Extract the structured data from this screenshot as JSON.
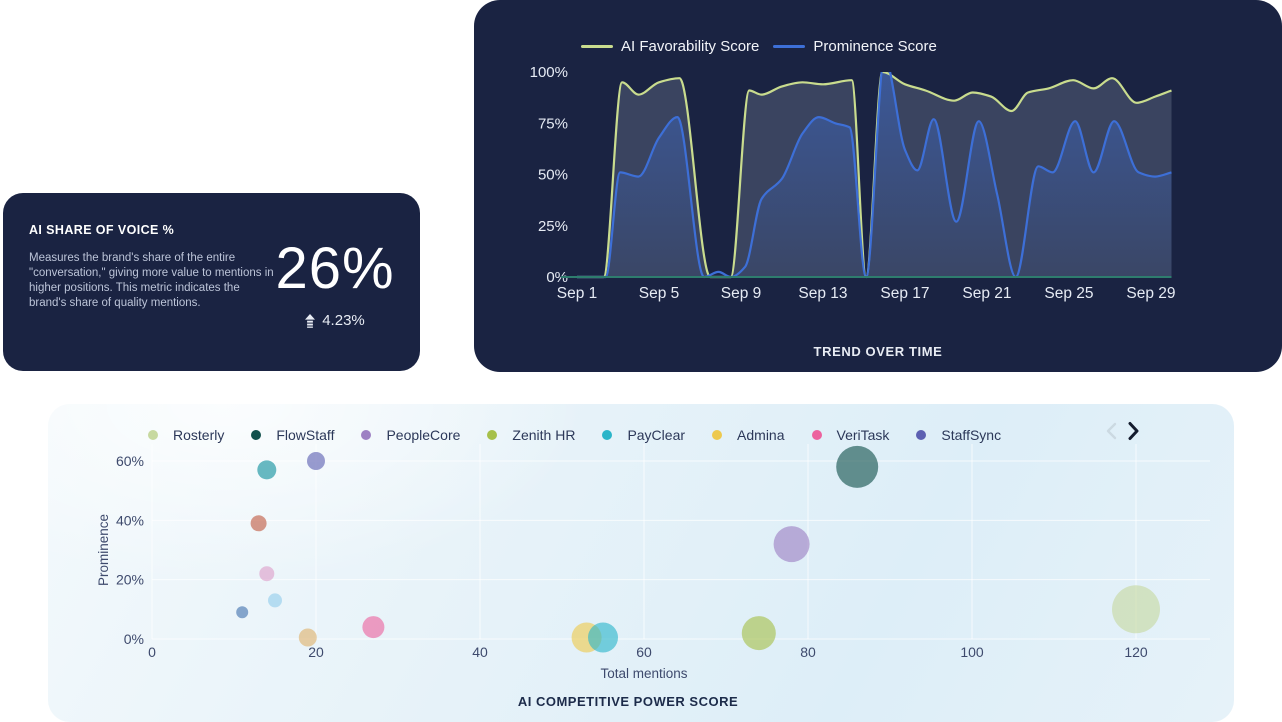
{
  "share_card": {
    "title": "AI SHARE OF VOICE %",
    "description": "Measures the brand's share of the entire \"conversation,\" giving more value to mentions in higher positions. This metric indicates the brand's share of quality mentions.",
    "value": "26%",
    "delta": "4.23%",
    "delta_direction": "up",
    "card_color": "#1a2342"
  },
  "chart_data": [
    {
      "type": "area",
      "title": "TREND OVER TIME",
      "legend_position": "top",
      "grid": false,
      "x_axis": {
        "domain_days": [
          1,
          30
        ],
        "tick_days": [
          1,
          5,
          9,
          13,
          17,
          21,
          25,
          29
        ],
        "tick_labels": [
          "Sep 1",
          "Sep 5",
          "Sep 9",
          "Sep 13",
          "Sep 17",
          "Sep 21",
          "Sep 25",
          "Sep 29"
        ]
      },
      "y_axis": {
        "range": [
          0,
          100
        ],
        "tick_values": [
          0,
          25,
          50,
          75,
          100
        ],
        "tick_labels": [
          "0%",
          "25%",
          "50%",
          "75%",
          "100%"
        ]
      },
      "baseline_color": "#2e7d6e",
      "series": [
        {
          "name": "AI Favorability Score",
          "color": "#c9dc8e",
          "area_fill": "rgba(150,165,186,0.26)",
          "x": [
            1,
            2.3,
            3.2,
            4,
            5,
            6,
            7.5,
            8.5,
            9.4,
            10,
            11,
            12,
            13,
            14.4,
            15.1,
            15.9,
            17,
            18,
            19.4,
            20.3,
            21.2,
            22.2,
            23,
            24,
            25.2,
            26.2,
            27.1,
            28.3,
            29.2,
            30
          ],
          "y": [
            0,
            0,
            95,
            89,
            95,
            97,
            0,
            0,
            91,
            89,
            93,
            95,
            94,
            96,
            0,
            100,
            94,
            91,
            86,
            90,
            88,
            81,
            90,
            92,
            96,
            92,
            97,
            85,
            88,
            91
          ]
        },
        {
          "name": "Prominence Score",
          "color": "#3d6fd7",
          "area_fill": "gradient-blue",
          "x": [
            1,
            2.4,
            3.1,
            4,
            5,
            5.9,
            7.2,
            7.9,
            8.5,
            9.2,
            10,
            11,
            12,
            12.8,
            13.6,
            14.3,
            15.1,
            16,
            17,
            17.6,
            18.4,
            19.5,
            20.6,
            21.5,
            22.4,
            23.5,
            24.2,
            25.3,
            26.2,
            27.2,
            28.4,
            29.2,
            30
          ],
          "y": [
            0,
            0,
            51,
            49,
            68,
            78,
            0,
            2.5,
            0,
            5,
            38,
            48,
            70,
            78,
            75,
            73,
            0,
            107,
            62,
            52,
            77,
            27,
            76,
            40,
            0,
            54,
            51,
            76,
            51,
            76,
            51,
            49,
            51
          ]
        }
      ]
    },
    {
      "type": "scatter",
      "title": "AI COMPETITIVE POWER SCORE",
      "xlabel": "Total mentions",
      "ylabel": "Prominence",
      "x_axis": {
        "range": [
          0,
          129
        ],
        "tick_values": [
          0,
          20,
          40,
          60,
          80,
          100,
          120
        ],
        "tick_labels": [
          "0",
          "20",
          "40",
          "60",
          "80",
          "100",
          "120"
        ]
      },
      "y_axis": {
        "range": [
          0,
          60
        ],
        "tick_values": [
          0,
          20,
          40,
          60
        ],
        "tick_labels": [
          "0%",
          "20%",
          "40%",
          "60%"
        ]
      },
      "grid": true,
      "legend": [
        {
          "name": "Rosterly",
          "color": "#c7d9a0"
        },
        {
          "name": "FlowStaff",
          "color": "#11504c"
        },
        {
          "name": "PeopleCore",
          "color": "#9d80c3"
        },
        {
          "name": "Zenith HR",
          "color": "#a6c04a"
        },
        {
          "name": "PayClear",
          "color": "#2bb5c9"
        },
        {
          "name": "Admina",
          "color": "#edc94e"
        },
        {
          "name": "VeriTask",
          "color": "#ec629e"
        },
        {
          "name": "StaffSync",
          "color": "#5c60b2"
        }
      ],
      "pager": {
        "prev_enabled": false,
        "next_enabled": true
      },
      "points": [
        {
          "brand": "Rosterly",
          "x": 120,
          "y": 10,
          "r": 24,
          "color": "#c7d9a0"
        },
        {
          "brand": "FlowStaff",
          "x": 86,
          "y": 58,
          "r": 21,
          "color": "#11504c"
        },
        {
          "brand": "PeopleCore",
          "x": 78,
          "y": 32,
          "r": 18,
          "color": "#9d80c3"
        },
        {
          "brand": "Zenith HR",
          "x": 74,
          "y": 2,
          "r": 17,
          "color": "#a6c04a"
        },
        {
          "brand": "Admina",
          "x": 53,
          "y": 0.5,
          "r": 15,
          "color": "#edc94e"
        },
        {
          "brand": "PayClear",
          "x": 55,
          "y": 0.5,
          "r": 15,
          "color": "#2bb5c9"
        },
        {
          "brand": "VeriTask",
          "x": 27,
          "y": 4,
          "r": 11,
          "color": "#ec629e"
        },
        {
          "brand": "StaffSync",
          "x": 20,
          "y": 60,
          "r": 9,
          "color": "#5c60b2"
        },
        {
          "brand": "",
          "x": 14,
          "y": 57,
          "r": 9.5,
          "color": "#0e8f9d"
        },
        {
          "brand": "",
          "x": 13,
          "y": 39,
          "r": 8,
          "color": "#c05a40"
        },
        {
          "brand": "",
          "x": 14,
          "y": 22,
          "r": 7.5,
          "color": "#dd9ec9"
        },
        {
          "brand": "",
          "x": 15,
          "y": 13,
          "r": 7,
          "color": "#93cdeb"
        },
        {
          "brand": "",
          "x": 11,
          "y": 9,
          "r": 6,
          "color": "#4273ae"
        },
        {
          "brand": "",
          "x": 19,
          "y": 0.5,
          "r": 9,
          "color": "#dfb26c"
        }
      ]
    }
  ]
}
